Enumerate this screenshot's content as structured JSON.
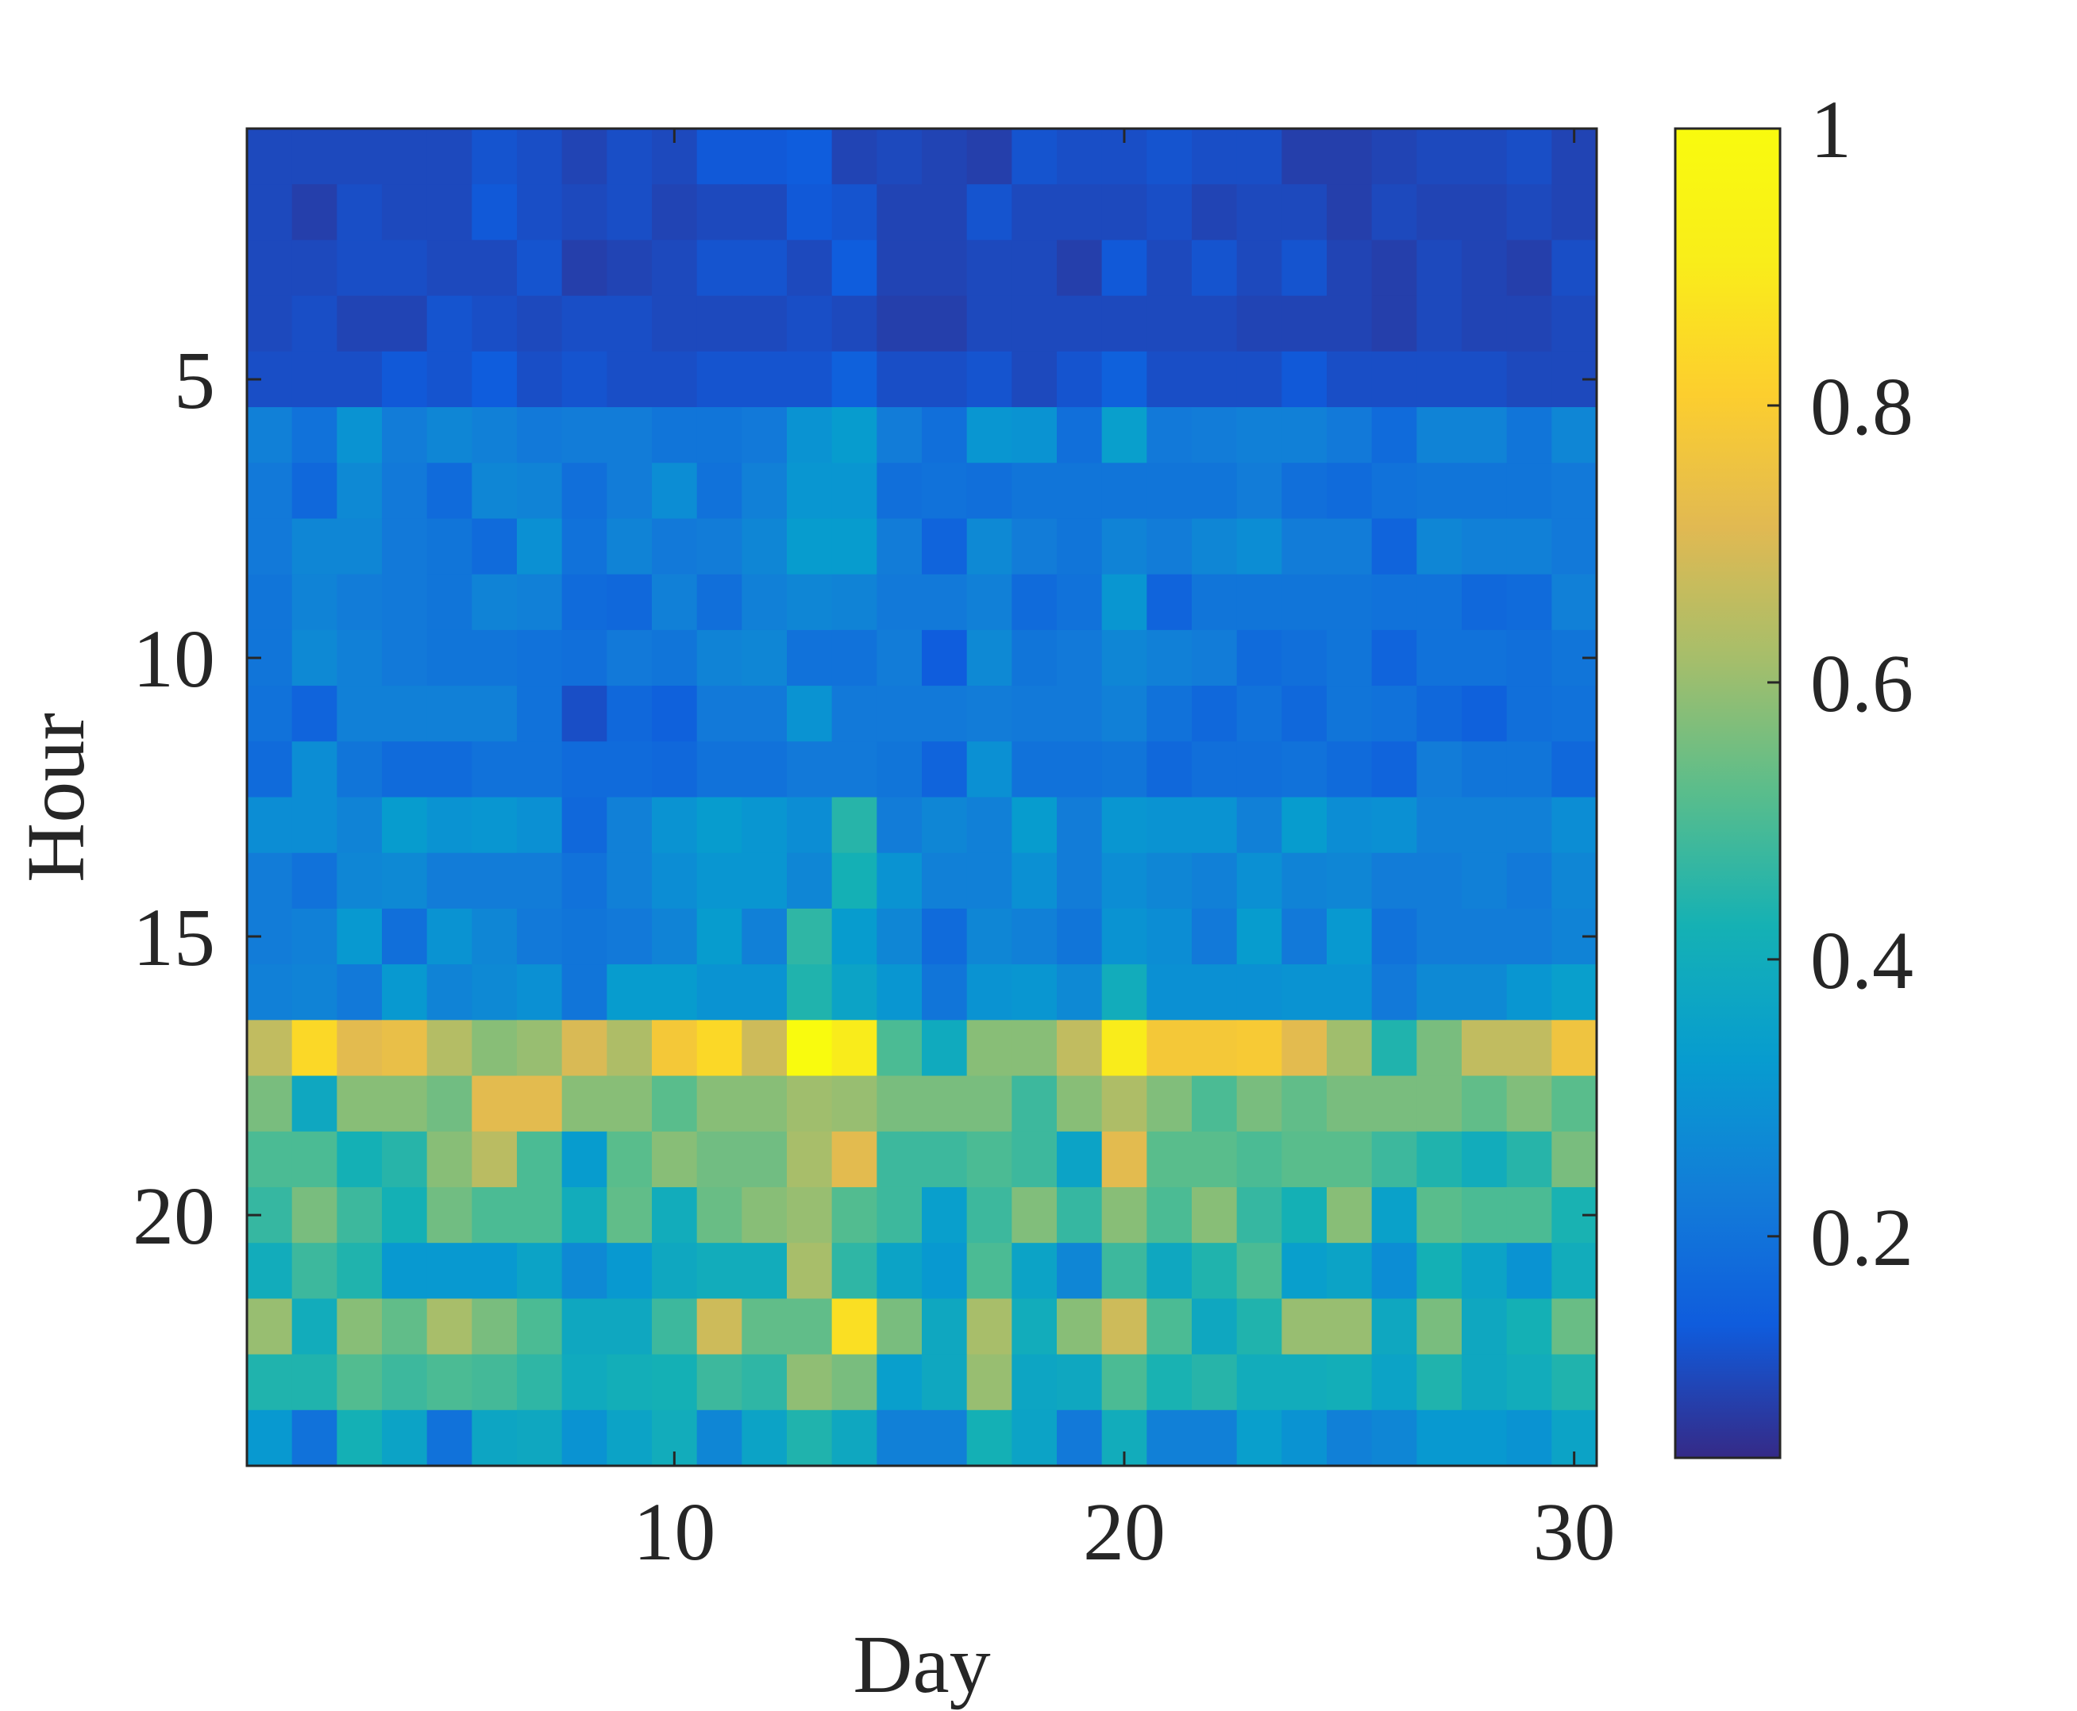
{
  "chart_data": {
    "type": "heatmap",
    "title": "",
    "xlabel": "Day",
    "ylabel": "Hour",
    "x_ticks": [
      10,
      20,
      30
    ],
    "y_ticks": [
      5,
      10,
      15,
      20
    ],
    "colorbar_ticks": [
      "0.2",
      "0.4",
      "0.6",
      "0.8",
      "1"
    ],
    "colorbar_values": [
      0.2,
      0.4,
      0.6,
      0.8,
      1.0
    ],
    "clim": [
      0.04,
      1.0
    ],
    "colormap": "parula",
    "x": [
      1,
      2,
      3,
      4,
      5,
      6,
      7,
      8,
      9,
      10,
      11,
      12,
      13,
      14,
      15,
      16,
      17,
      18,
      19,
      20,
      21,
      22,
      23,
      24,
      25,
      26,
      27,
      28,
      29,
      30
    ],
    "y": [
      1,
      2,
      3,
      4,
      5,
      6,
      7,
      8,
      9,
      10,
      11,
      12,
      13,
      14,
      15,
      16,
      17,
      18,
      19,
      20,
      21,
      22,
      23,
      24
    ],
    "values": [
      [
        0.1,
        0.1,
        0.1,
        0.1,
        0.1,
        0.12,
        0.11,
        0.09,
        0.11,
        0.1,
        0.13,
        0.13,
        0.14,
        0.09,
        0.1,
        0.09,
        0.08,
        0.12,
        0.11,
        0.11,
        0.12,
        0.11,
        0.11,
        0.08,
        0.08,
        0.09,
        0.1,
        0.1,
        0.11,
        0.09
      ],
      [
        0.1,
        0.08,
        0.11,
        0.1,
        0.1,
        0.13,
        0.11,
        0.1,
        0.11,
        0.09,
        0.1,
        0.1,
        0.13,
        0.12,
        0.09,
        0.09,
        0.12,
        0.1,
        0.1,
        0.1,
        0.11,
        0.09,
        0.1,
        0.1,
        0.08,
        0.1,
        0.09,
        0.09,
        0.1,
        0.09
      ],
      [
        0.1,
        0.1,
        0.11,
        0.11,
        0.1,
        0.1,
        0.12,
        0.08,
        0.09,
        0.1,
        0.12,
        0.12,
        0.1,
        0.14,
        0.09,
        0.09,
        0.1,
        0.1,
        0.08,
        0.13,
        0.1,
        0.12,
        0.1,
        0.12,
        0.09,
        0.08,
        0.1,
        0.09,
        0.08,
        0.11
      ],
      [
        0.1,
        0.11,
        0.09,
        0.09,
        0.12,
        0.11,
        0.1,
        0.11,
        0.11,
        0.1,
        0.1,
        0.1,
        0.11,
        0.1,
        0.08,
        0.08,
        0.1,
        0.1,
        0.1,
        0.1,
        0.1,
        0.1,
        0.09,
        0.09,
        0.09,
        0.08,
        0.1,
        0.09,
        0.09,
        0.1
      ],
      [
        0.11,
        0.11,
        0.11,
        0.13,
        0.12,
        0.14,
        0.11,
        0.12,
        0.11,
        0.11,
        0.12,
        0.12,
        0.12,
        0.15,
        0.11,
        0.11,
        0.12,
        0.1,
        0.12,
        0.15,
        0.11,
        0.11,
        0.11,
        0.13,
        0.11,
        0.11,
        0.11,
        0.11,
        0.1,
        0.1
      ],
      [
        0.24,
        0.2,
        0.3,
        0.23,
        0.26,
        0.24,
        0.22,
        0.23,
        0.23,
        0.21,
        0.21,
        0.22,
        0.3,
        0.33,
        0.23,
        0.19,
        0.31,
        0.3,
        0.19,
        0.34,
        0.22,
        0.23,
        0.24,
        0.24,
        0.22,
        0.18,
        0.25,
        0.25,
        0.21,
        0.26
      ],
      [
        0.22,
        0.17,
        0.27,
        0.22,
        0.18,
        0.26,
        0.25,
        0.19,
        0.23,
        0.28,
        0.2,
        0.24,
        0.31,
        0.31,
        0.19,
        0.2,
        0.19,
        0.21,
        0.21,
        0.21,
        0.21,
        0.21,
        0.23,
        0.19,
        0.18,
        0.2,
        0.21,
        0.21,
        0.21,
        0.22
      ],
      [
        0.22,
        0.26,
        0.26,
        0.22,
        0.21,
        0.18,
        0.29,
        0.2,
        0.25,
        0.22,
        0.23,
        0.26,
        0.33,
        0.33,
        0.23,
        0.16,
        0.27,
        0.23,
        0.21,
        0.25,
        0.23,
        0.26,
        0.28,
        0.23,
        0.23,
        0.16,
        0.26,
        0.24,
        0.24,
        0.22
      ],
      [
        0.21,
        0.25,
        0.23,
        0.22,
        0.21,
        0.25,
        0.24,
        0.18,
        0.17,
        0.24,
        0.19,
        0.24,
        0.26,
        0.25,
        0.22,
        0.22,
        0.24,
        0.18,
        0.2,
        0.31,
        0.16,
        0.21,
        0.21,
        0.21,
        0.21,
        0.2,
        0.2,
        0.17,
        0.18,
        0.24
      ],
      [
        0.21,
        0.27,
        0.24,
        0.22,
        0.21,
        0.21,
        0.2,
        0.19,
        0.22,
        0.21,
        0.25,
        0.26,
        0.2,
        0.2,
        0.23,
        0.14,
        0.27,
        0.21,
        0.22,
        0.26,
        0.24,
        0.23,
        0.18,
        0.19,
        0.21,
        0.16,
        0.2,
        0.2,
        0.19,
        0.21
      ],
      [
        0.2,
        0.16,
        0.24,
        0.24,
        0.24,
        0.24,
        0.2,
        0.11,
        0.17,
        0.15,
        0.22,
        0.22,
        0.3,
        0.22,
        0.22,
        0.22,
        0.23,
        0.22,
        0.22,
        0.24,
        0.2,
        0.17,
        0.2,
        0.17,
        0.21,
        0.2,
        0.17,
        0.15,
        0.19,
        0.2
      ],
      [
        0.18,
        0.28,
        0.21,
        0.18,
        0.18,
        0.2,
        0.2,
        0.18,
        0.18,
        0.17,
        0.2,
        0.2,
        0.22,
        0.22,
        0.21,
        0.16,
        0.29,
        0.2,
        0.2,
        0.21,
        0.17,
        0.19,
        0.19,
        0.2,
        0.18,
        0.16,
        0.23,
        0.21,
        0.21,
        0.17
      ],
      [
        0.28,
        0.28,
        0.25,
        0.33,
        0.3,
        0.31,
        0.29,
        0.17,
        0.24,
        0.3,
        0.33,
        0.31,
        0.28,
        0.45,
        0.23,
        0.26,
        0.24,
        0.33,
        0.23,
        0.31,
        0.3,
        0.3,
        0.24,
        0.33,
        0.28,
        0.29,
        0.24,
        0.24,
        0.24,
        0.28
      ],
      [
        0.23,
        0.2,
        0.26,
        0.27,
        0.23,
        0.23,
        0.23,
        0.2,
        0.24,
        0.28,
        0.31,
        0.31,
        0.26,
        0.42,
        0.3,
        0.24,
        0.24,
        0.29,
        0.23,
        0.28,
        0.26,
        0.24,
        0.29,
        0.25,
        0.26,
        0.23,
        0.23,
        0.24,
        0.22,
        0.26
      ],
      [
        0.23,
        0.24,
        0.32,
        0.19,
        0.3,
        0.26,
        0.22,
        0.21,
        0.22,
        0.25,
        0.33,
        0.24,
        0.46,
        0.33,
        0.26,
        0.18,
        0.26,
        0.24,
        0.21,
        0.3,
        0.28,
        0.22,
        0.33,
        0.22,
        0.32,
        0.2,
        0.23,
        0.23,
        0.23,
        0.25
      ],
      [
        0.24,
        0.25,
        0.22,
        0.32,
        0.25,
        0.27,
        0.29,
        0.21,
        0.33,
        0.33,
        0.3,
        0.3,
        0.44,
        0.36,
        0.31,
        0.21,
        0.3,
        0.31,
        0.27,
        0.4,
        0.29,
        0.29,
        0.29,
        0.3,
        0.3,
        0.22,
        0.27,
        0.27,
        0.31,
        0.34
      ],
      [
        0.66,
        0.84,
        0.72,
        0.74,
        0.64,
        0.58,
        0.6,
        0.7,
        0.63,
        0.78,
        0.84,
        0.68,
        1.0,
        0.9,
        0.5,
        0.39,
        0.58,
        0.58,
        0.66,
        0.9,
        0.78,
        0.78,
        0.79,
        0.72,
        0.61,
        0.44,
        0.56,
        0.66,
        0.66,
        0.76
      ],
      [
        0.56,
        0.38,
        0.58,
        0.58,
        0.55,
        0.72,
        0.72,
        0.58,
        0.58,
        0.52,
        0.58,
        0.58,
        0.61,
        0.6,
        0.56,
        0.56,
        0.56,
        0.48,
        0.58,
        0.63,
        0.57,
        0.5,
        0.56,
        0.53,
        0.56,
        0.56,
        0.56,
        0.53,
        0.57,
        0.52
      ],
      [
        0.5,
        0.5,
        0.42,
        0.45,
        0.58,
        0.65,
        0.5,
        0.33,
        0.52,
        0.58,
        0.55,
        0.55,
        0.62,
        0.72,
        0.48,
        0.48,
        0.5,
        0.48,
        0.36,
        0.72,
        0.52,
        0.52,
        0.5,
        0.52,
        0.52,
        0.48,
        0.44,
        0.4,
        0.45,
        0.56
      ],
      [
        0.47,
        0.56,
        0.48,
        0.42,
        0.55,
        0.5,
        0.5,
        0.4,
        0.53,
        0.4,
        0.54,
        0.58,
        0.6,
        0.51,
        0.48,
        0.34,
        0.48,
        0.57,
        0.47,
        0.58,
        0.5,
        0.58,
        0.47,
        0.42,
        0.58,
        0.35,
        0.52,
        0.5,
        0.5,
        0.43
      ],
      [
        0.4,
        0.48,
        0.44,
        0.32,
        0.32,
        0.32,
        0.36,
        0.27,
        0.32,
        0.38,
        0.4,
        0.4,
        0.62,
        0.46,
        0.36,
        0.32,
        0.5,
        0.36,
        0.26,
        0.48,
        0.38,
        0.44,
        0.5,
        0.34,
        0.36,
        0.28,
        0.42,
        0.36,
        0.3,
        0.4
      ],
      [
        0.6,
        0.4,
        0.58,
        0.53,
        0.62,
        0.56,
        0.5,
        0.38,
        0.38,
        0.48,
        0.68,
        0.53,
        0.53,
        0.86,
        0.56,
        0.38,
        0.62,
        0.4,
        0.58,
        0.68,
        0.5,
        0.38,
        0.44,
        0.6,
        0.6,
        0.38,
        0.56,
        0.38,
        0.42,
        0.54
      ],
      [
        0.44,
        0.44,
        0.51,
        0.48,
        0.5,
        0.49,
        0.46,
        0.39,
        0.41,
        0.42,
        0.48,
        0.46,
        0.59,
        0.56,
        0.34,
        0.38,
        0.6,
        0.37,
        0.38,
        0.5,
        0.43,
        0.45,
        0.4,
        0.4,
        0.41,
        0.36,
        0.44,
        0.38,
        0.4,
        0.44
      ],
      [
        0.32,
        0.2,
        0.42,
        0.36,
        0.2,
        0.37,
        0.38,
        0.3,
        0.36,
        0.4,
        0.26,
        0.36,
        0.44,
        0.38,
        0.24,
        0.24,
        0.42,
        0.36,
        0.22,
        0.4,
        0.24,
        0.24,
        0.34,
        0.3,
        0.24,
        0.26,
        0.32,
        0.32,
        0.3,
        0.36
      ]
    ]
  }
}
